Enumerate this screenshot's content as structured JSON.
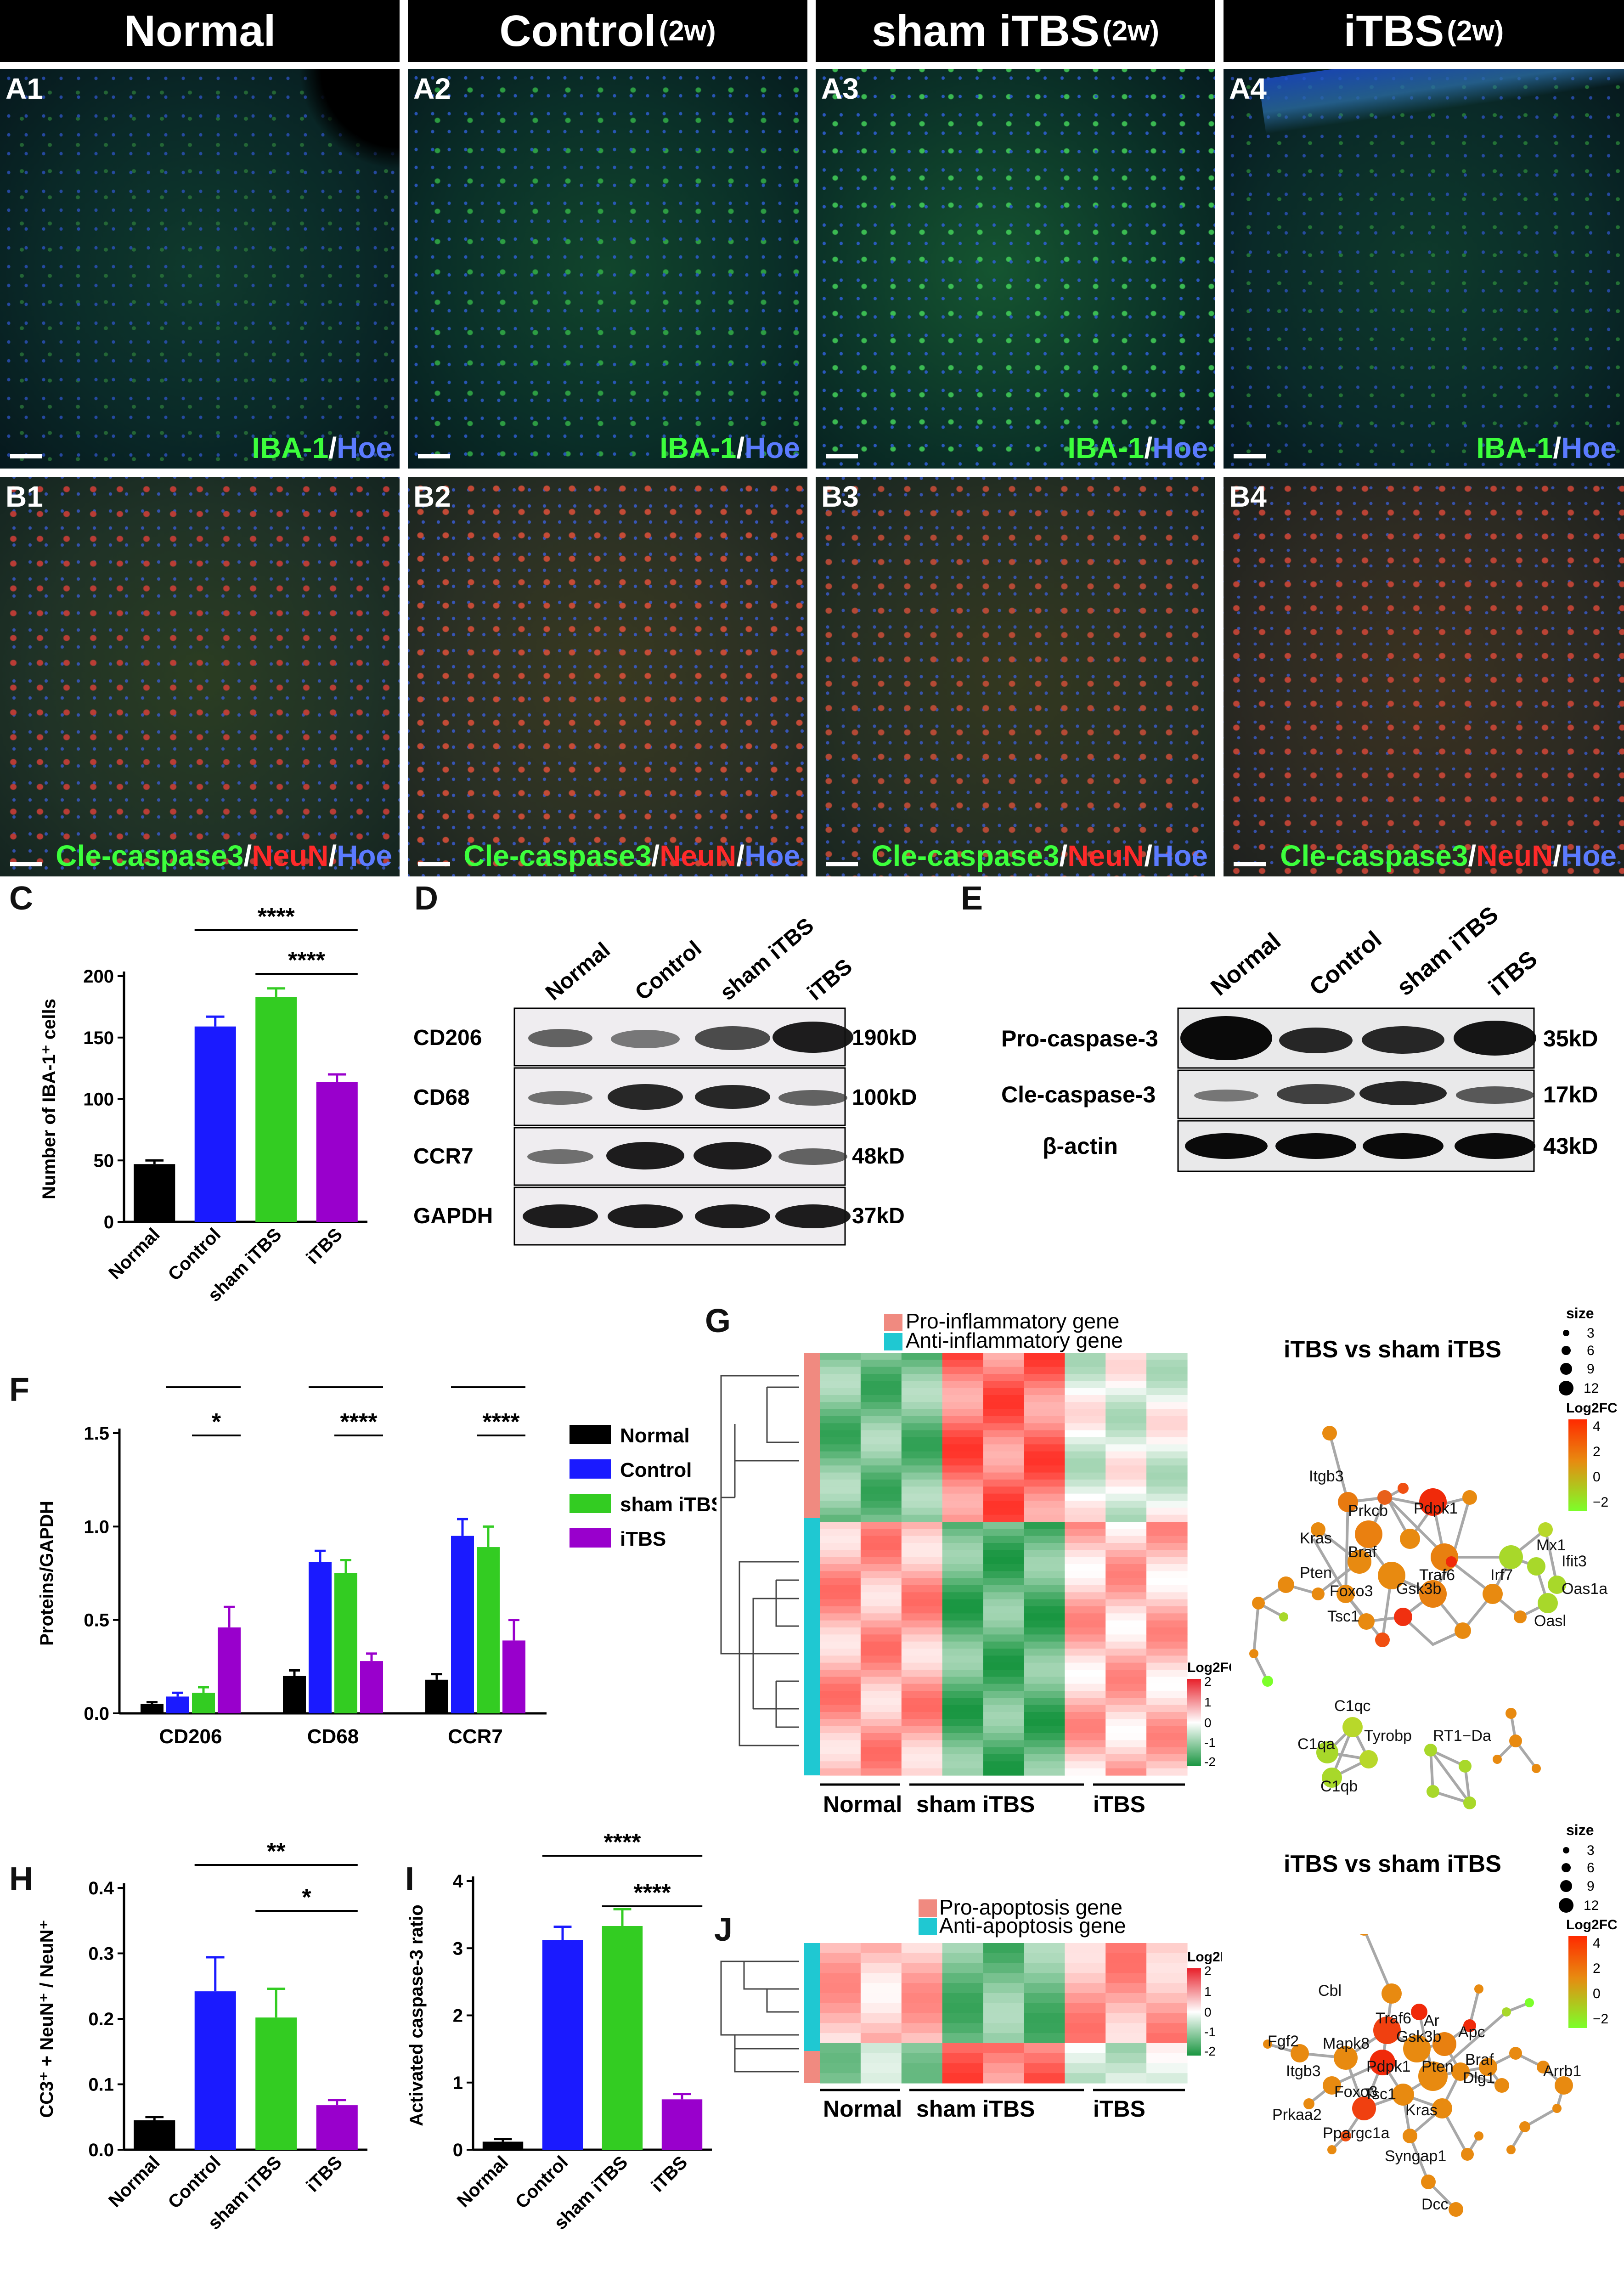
{
  "headers": {
    "col1": {
      "main": "Normal",
      "sub": ""
    },
    "col2": {
      "main": "Control",
      "sub": "(2w)"
    },
    "col3": {
      "main": "sham iTBS",
      "sub": "(2w)"
    },
    "col4": {
      "main": "iTBS",
      "sub": "(2w)"
    }
  },
  "row_a": {
    "labels": [
      "A1",
      "A2",
      "A3",
      "A4"
    ],
    "stain": {
      "part1": "IBA-1",
      "sep": "/",
      "part2": "Hoe"
    }
  },
  "row_b": {
    "labels": [
      "B1",
      "B2",
      "B3",
      "B4"
    ],
    "stain": {
      "part1": "Cle-caspase3",
      "sep1": "/",
      "part2": "NeuN",
      "sep2": "/",
      "part3": "Hoe"
    }
  },
  "panel_letters": {
    "c": "C",
    "d": "D",
    "e": "E",
    "f": "F",
    "g": "G",
    "h": "H",
    "i": "I",
    "j": "J"
  },
  "western_d": {
    "lanes": [
      "Normal",
      "Control",
      "sham iTBS",
      "iTBS"
    ],
    "rows": [
      {
        "protein": "CD206",
        "size": "190kD"
      },
      {
        "protein": "CD68",
        "size": "100kD"
      },
      {
        "protein": "CCR7",
        "size": "48kD"
      },
      {
        "protein": "GAPDH",
        "size": "37kD"
      }
    ]
  },
  "western_e": {
    "lanes": [
      "Normal",
      "Control",
      "sham iTBS",
      "iTBS"
    ],
    "rows": [
      {
        "protein": "Pro-caspase-3",
        "size": "35kD"
      },
      {
        "protein": "Cle-caspase-3",
        "size": "17kD"
      },
      {
        "protein": "β-actin",
        "size": "43kD"
      }
    ]
  },
  "heatmap_g": {
    "legend": [
      "Pro-inflammatory gene",
      "Anti-inflammatory gene"
    ],
    "groups": [
      "Normal",
      "sham iTBS",
      "iTBS"
    ],
    "scale_title": "Log2FC",
    "scale_ticks": [
      "2",
      "1",
      "0",
      "-1",
      "-2"
    ]
  },
  "heatmap_j": {
    "legend": [
      "Pro-apoptosis gene",
      "Anti-apoptosis gene"
    ],
    "groups": [
      "Normal",
      "sham iTBS",
      "iTBS"
    ],
    "scale_title": "Log2FC",
    "scale_ticks": [
      "2",
      "1",
      "0",
      "-1",
      "-2"
    ]
  },
  "network_g": {
    "title": "iTBS vs sham iTBS",
    "size_title": "size",
    "size_ticks": [
      "3",
      "6",
      "9",
      "12"
    ],
    "fc_title": "Log2FC",
    "fc_ticks": [
      "4",
      "2",
      "0",
      "−2"
    ],
    "genes": [
      "Itgb3",
      "Prkcb",
      "Pdpk1",
      "Kras",
      "Braf",
      "Pten",
      "Traf6",
      "Foxo3",
      "Gsk3b",
      "Tsc1",
      "Mx1",
      "Ifit3",
      "Irf7",
      "Oas1a",
      "Oasl",
      "C1qc",
      "C1qa",
      "Tyrobp",
      "C1qb",
      "RT1−Da"
    ]
  },
  "network_j": {
    "title": "iTBS vs sham iTBS",
    "size_title": "size",
    "size_ticks": [
      "3",
      "6",
      "9",
      "12"
    ],
    "fc_title": "Log2FC",
    "fc_ticks": [
      "4",
      "2",
      "0",
      "−2"
    ],
    "genes": [
      "Cbl",
      "Traf6",
      "Ar",
      "Fgf2",
      "Mapk8",
      "Gsk3b",
      "Apc",
      "Itgb3",
      "Pdpk1",
      "Braf",
      "Arrb1",
      "Pten",
      "Dlg1",
      "Foxo3",
      "Tsc1",
      "Kras",
      "Prkaa2",
      "Ppargc1a",
      "Syngap1",
      "Dcc"
    ]
  },
  "chart_data": [
    {
      "id": "C",
      "type": "bar",
      "ylabel": "Number of IBA-1⁺ cells",
      "ylim": [
        0,
        200
      ],
      "yticks": [
        0,
        50,
        100,
        150,
        200
      ],
      "categories": [
        "Normal",
        "Control",
        "sham iTBS",
        "iTBS"
      ],
      "values": [
        47,
        159,
        183,
        114
      ],
      "errors": [
        3,
        8,
        7,
        6
      ],
      "colors": [
        "#000000",
        "#1a1aff",
        "#33cc22",
        "#9900cc"
      ],
      "significance": [
        {
          "from": 1,
          "to": 3,
          "label": "****"
        },
        {
          "from": 2,
          "to": 3,
          "label": "****"
        }
      ]
    },
    {
      "id": "F",
      "type": "bar",
      "ylabel": "Proteins/GAPDH",
      "ylim": [
        0,
        1.5
      ],
      "yticks": [
        0.0,
        0.5,
        1.0,
        1.5
      ],
      "categories": [
        "CD206",
        "CD68",
        "CCR7"
      ],
      "series": [
        {
          "name": "Normal",
          "color": "#000000",
          "values": [
            0.05,
            0.2,
            0.18
          ],
          "errors": [
            0.01,
            0.03,
            0.03
          ]
        },
        {
          "name": "Control",
          "color": "#1a1aff",
          "values": [
            0.09,
            0.81,
            0.95
          ],
          "errors": [
            0.02,
            0.06,
            0.09
          ]
        },
        {
          "name": "sham iTBS",
          "color": "#33cc22",
          "values": [
            0.11,
            0.75,
            0.89
          ],
          "errors": [
            0.03,
            0.07,
            0.11
          ]
        },
        {
          "name": "iTBS",
          "color": "#9900cc",
          "values": [
            0.46,
            0.28,
            0.39
          ],
          "errors": [
            0.11,
            0.04,
            0.11
          ]
        }
      ],
      "significance": [
        {
          "group": 0,
          "from": 1,
          "to": 3,
          "label": "**"
        },
        {
          "group": 0,
          "from": 2,
          "to": 3,
          "label": "*"
        },
        {
          "group": 1,
          "from": 1,
          "to": 3,
          "label": "****"
        },
        {
          "group": 1,
          "from": 2,
          "to": 3,
          "label": "****"
        },
        {
          "group": 2,
          "from": 1,
          "to": 3,
          "label": "****"
        },
        {
          "group": 2,
          "from": 2,
          "to": 3,
          "label": "****"
        }
      ]
    },
    {
      "id": "H",
      "type": "bar",
      "ylabel": "CC3⁺ + NeuN⁺ / NeuN⁺",
      "ylim": [
        0,
        0.4
      ],
      "yticks": [
        0.0,
        0.1,
        0.2,
        0.3,
        0.4
      ],
      "categories": [
        "Normal",
        "Control",
        "sham iTBS",
        "iTBS"
      ],
      "values": [
        0.045,
        0.242,
        0.202,
        0.068
      ],
      "errors": [
        0.005,
        0.052,
        0.044,
        0.008
      ],
      "colors": [
        "#000000",
        "#1a1aff",
        "#33cc22",
        "#9900cc"
      ],
      "significance": [
        {
          "from": 1,
          "to": 3,
          "label": "**"
        },
        {
          "from": 2,
          "to": 3,
          "label": "*"
        }
      ]
    },
    {
      "id": "I",
      "type": "bar",
      "ylabel": "Activated caspase-3 ratio",
      "ylim": [
        0,
        4
      ],
      "yticks": [
        0,
        1,
        2,
        3,
        4
      ],
      "categories": [
        "Normal",
        "Control",
        "sham iTBS",
        "iTBS"
      ],
      "values": [
        0.12,
        3.12,
        3.33,
        0.75
      ],
      "errors": [
        0.04,
        0.2,
        0.25,
        0.08
      ],
      "colors": [
        "#000000",
        "#1a1aff",
        "#33cc22",
        "#9900cc"
      ],
      "significance": [
        {
          "from": 1,
          "to": 3,
          "label": "****"
        },
        {
          "from": 2,
          "to": 3,
          "label": "****"
        }
      ]
    }
  ]
}
